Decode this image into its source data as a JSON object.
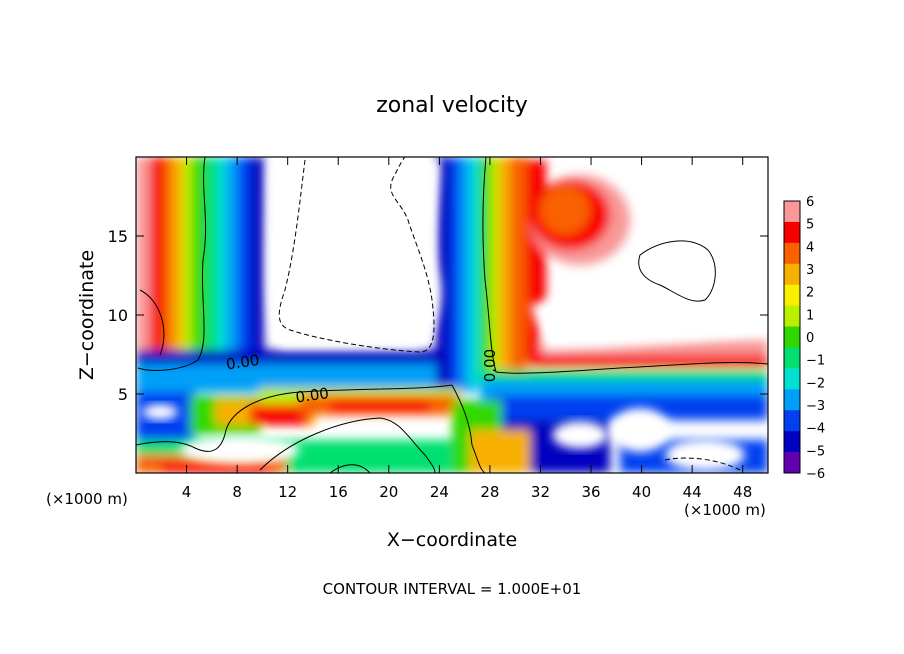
{
  "chart_data": {
    "type": "heatmap",
    "title": "zonal velocity",
    "xlabel": "X−coordinate",
    "ylabel": "Z−coordinate",
    "x_unit_left": "(×1000 m)",
    "x_unit_right": "(×1000 m)",
    "footer": "CONTOUR INTERVAL = 1.000E+01",
    "xlim": [
      0,
      50
    ],
    "ylim": [
      0,
      20
    ],
    "x_ticks": [
      4,
      8,
      12,
      16,
      20,
      24,
      28,
      32,
      36,
      40,
      44,
      48
    ],
    "y_ticks": [
      5,
      10,
      15
    ],
    "colorbar": {
      "ticks": [
        6,
        5,
        4,
        3,
        2,
        1,
        0,
        -1,
        -2,
        -3,
        -4,
        -5,
        -6
      ],
      "colors": [
        "#f89898",
        "#f80000",
        "#f86000",
        "#f8b000",
        "#f8f000",
        "#b8f000",
        "#30d800",
        "#00e070",
        "#00e0d0",
        "#00a0f8",
        "#0040f0",
        "#0000c0",
        "#6000b0"
      ]
    },
    "contour_labels": [
      {
        "text": "0.00",
        "x": 8.5,
        "z": 6.7
      },
      {
        "text": "0.00",
        "x": 14,
        "z": 4.6
      },
      {
        "text": "0.00",
        "x": 28.4,
        "z": 6.8
      }
    ]
  }
}
